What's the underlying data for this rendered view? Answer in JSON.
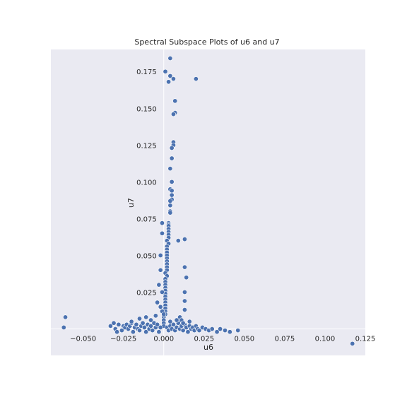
{
  "chart_data": {
    "type": "scatter",
    "title": "Spectral Subspace Plots of u6 and u7",
    "xlabel": "u6",
    "ylabel": "u7",
    "xlim": [
      -0.07,
      0.125
    ],
    "ylim": [
      -0.018,
      0.19
    ],
    "xticks": [
      -0.05,
      -0.025,
      0.0,
      0.025,
      0.05,
      0.075,
      0.1,
      0.125
    ],
    "xtick_labels": [
      "−0.050",
      "−0.025",
      "0.000",
      "0.025",
      "0.050",
      "0.075",
      "0.100",
      "0.125"
    ],
    "yticks": [
      0.025,
      0.05,
      0.075,
      0.1,
      0.125,
      0.15,
      0.175
    ],
    "ytick_labels": [
      "0.025",
      "0.050",
      "0.075",
      "0.100",
      "0.125",
      "0.150",
      "0.175"
    ],
    "grid": true,
    "marker_color": "#4c72b0",
    "background": "#eaeaf2",
    "points": [
      [
        0.004,
        0.184
      ],
      [
        0.001,
        0.175
      ],
      [
        0.004,
        0.172
      ],
      [
        0.003,
        0.168
      ],
      [
        0.006,
        0.17
      ],
      [
        0.02,
        0.17
      ],
      [
        0.007,
        0.155
      ],
      [
        0.007,
        0.147
      ],
      [
        0.006,
        0.146
      ],
      [
        0.006,
        0.127
      ],
      [
        0.006,
        0.125
      ],
      [
        0.005,
        0.123
      ],
      [
        0.005,
        0.116
      ],
      [
        0.004,
        0.109
      ],
      [
        0.005,
        0.1
      ],
      [
        0.004,
        0.095
      ],
      [
        0.005,
        0.094
      ],
      [
        0.005,
        0.091
      ],
      [
        0.005,
        0.088
      ],
      [
        0.004,
        0.087
      ],
      [
        0.004,
        0.084
      ],
      [
        0.004,
        0.08
      ],
      [
        0.004,
        0.079
      ],
      [
        0.003,
        0.072
      ],
      [
        0.003,
        0.071
      ],
      [
        0.003,
        0.07
      ],
      [
        0.003,
        0.068
      ],
      [
        0.003,
        0.066
      ],
      [
        0.003,
        0.064
      ],
      [
        0.003,
        0.062
      ],
      [
        0.002,
        0.06
      ],
      [
        0.003,
        0.058
      ],
      [
        0.002,
        0.056
      ],
      [
        0.002,
        0.054
      ],
      [
        0.002,
        0.052
      ],
      [
        0.002,
        0.05
      ],
      [
        0.002,
        0.048
      ],
      [
        0.002,
        0.046
      ],
      [
        0.002,
        0.044
      ],
      [
        0.002,
        0.042
      ],
      [
        0.002,
        0.04
      ],
      [
        0.001,
        0.038
      ],
      [
        0.002,
        0.036
      ],
      [
        0.001,
        0.034
      ],
      [
        0.001,
        0.032
      ],
      [
        0.001,
        0.03
      ],
      [
        0.001,
        0.028
      ],
      [
        0.001,
        0.026
      ],
      [
        0.001,
        0.024
      ],
      [
        0.001,
        0.022
      ],
      [
        0.001,
        0.02
      ],
      [
        0.001,
        0.018
      ],
      [
        0.001,
        0.016
      ],
      [
        0.001,
        0.014
      ],
      [
        0.001,
        0.012
      ],
      [
        0.001,
        0.01
      ],
      [
        0.0,
        0.008
      ],
      [
        0.0,
        0.006
      ],
      [
        0.0,
        0.004
      ],
      [
        0.0,
        0.002
      ],
      [
        -0.001,
        0.072
      ],
      [
        -0.001,
        0.065
      ],
      [
        -0.002,
        0.05
      ],
      [
        -0.002,
        0.04
      ],
      [
        -0.003,
        0.03
      ],
      [
        -0.001,
        0.025
      ],
      [
        -0.004,
        0.018
      ],
      [
        -0.002,
        0.015
      ],
      [
        -0.001,
        0.012
      ],
      [
        0.0,
        0.01
      ],
      [
        0.009,
        0.06
      ],
      [
        0.013,
        0.061
      ],
      [
        0.013,
        0.042
      ],
      [
        0.014,
        0.035
      ],
      [
        0.013,
        0.025
      ],
      [
        0.013,
        0.019
      ],
      [
        0.013,
        0.013
      ],
      [
        0.01,
        0.008
      ],
      [
        0.011,
        0.006
      ],
      [
        -0.061,
        0.008
      ],
      [
        -0.062,
        0.001
      ],
      [
        0.117,
        -0.01
      ],
      [
        -0.033,
        0.002
      ],
      [
        -0.031,
        0.004
      ],
      [
        -0.03,
        0.0
      ],
      [
        -0.028,
        0.003
      ],
      [
        -0.026,
        -0.001
      ],
      [
        -0.025,
        0.002
      ],
      [
        -0.024,
        0.001
      ],
      [
        -0.023,
        0.003
      ],
      [
        -0.022,
        0.0
      ],
      [
        -0.021,
        0.002
      ],
      [
        -0.02,
        0.004
      ],
      [
        -0.019,
        -0.002
      ],
      [
        -0.018,
        0.001
      ],
      [
        -0.017,
        0.003
      ],
      [
        -0.016,
        0.0
      ],
      [
        -0.015,
        -0.001
      ],
      [
        -0.014,
        0.002
      ],
      [
        -0.013,
        0.004
      ],
      [
        -0.012,
        0.001
      ],
      [
        -0.011,
        -0.002
      ],
      [
        -0.01,
        0.003
      ],
      [
        -0.009,
        0.0
      ],
      [
        -0.008,
        0.002
      ],
      [
        -0.007,
        -0.001
      ],
      [
        -0.006,
        0.004
      ],
      [
        -0.005,
        0.001
      ],
      [
        -0.004,
        0.003
      ],
      [
        -0.003,
        -0.002
      ],
      [
        -0.002,
        0.001
      ],
      [
        -0.015,
        0.007
      ],
      [
        -0.011,
        0.008
      ],
      [
        -0.008,
        0.006
      ],
      [
        -0.005,
        0.009
      ],
      [
        -0.02,
        0.005
      ],
      [
        -0.029,
        -0.002
      ],
      [
        0.002,
        0.001
      ],
      [
        0.003,
        -0.001
      ],
      [
        0.004,
        0.002
      ],
      [
        0.005,
        0.0
      ],
      [
        0.006,
        0.003
      ],
      [
        0.007,
        -0.001
      ],
      [
        0.008,
        0.001
      ],
      [
        0.009,
        0.004
      ],
      [
        0.01,
        0.0
      ],
      [
        0.011,
        0.002
      ],
      [
        0.012,
        -0.001
      ],
      [
        0.013,
        0.003
      ],
      [
        0.014,
        0.001
      ],
      [
        0.015,
        -0.002
      ],
      [
        0.016,
        0.002
      ],
      [
        0.017,
        0.0
      ],
      [
        0.018,
        0.001
      ],
      [
        0.019,
        -0.001
      ],
      [
        0.02,
        0.002
      ],
      [
        0.021,
        0.0
      ],
      [
        0.022,
        -0.001
      ],
      [
        0.024,
        0.001
      ],
      [
        0.026,
        0.0
      ],
      [
        0.028,
        -0.001
      ],
      [
        0.03,
        0.0
      ],
      [
        0.033,
        -0.002
      ],
      [
        0.035,
        0.0
      ],
      [
        0.038,
        -0.001
      ],
      [
        0.041,
        -0.002
      ],
      [
        0.046,
        -0.001
      ],
      [
        0.016,
        0.005
      ],
      [
        0.008,
        0.006
      ],
      [
        0.004,
        0.005
      ],
      [
        0.012,
        0.004
      ]
    ]
  }
}
